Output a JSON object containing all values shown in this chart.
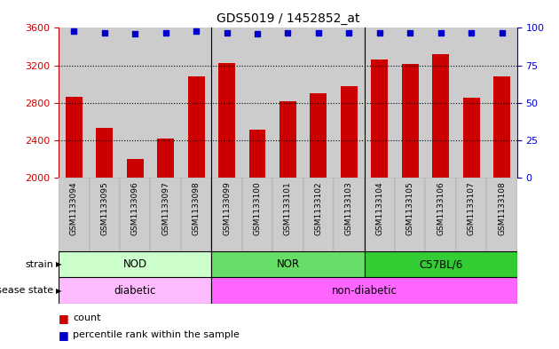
{
  "title": "GDS5019 / 1452852_at",
  "samples": [
    "GSM1133094",
    "GSM1133095",
    "GSM1133096",
    "GSM1133097",
    "GSM1133098",
    "GSM1133099",
    "GSM1133100",
    "GSM1133101",
    "GSM1133102",
    "GSM1133103",
    "GSM1133104",
    "GSM1133105",
    "GSM1133106",
    "GSM1133107",
    "GSM1133108"
  ],
  "counts": [
    2870,
    2530,
    2200,
    2420,
    3080,
    3230,
    2520,
    2820,
    2900,
    2980,
    3260,
    3220,
    3320,
    2860,
    3080
  ],
  "percentiles": [
    98,
    97,
    96,
    97,
    98,
    97,
    96,
    97,
    97,
    97,
    97,
    97,
    97,
    97,
    97
  ],
  "ylim_left": [
    2000,
    3600
  ],
  "ylim_right": [
    0,
    100
  ],
  "yticks_left": [
    2000,
    2400,
    2800,
    3200,
    3600
  ],
  "yticks_right": [
    0,
    25,
    50,
    75,
    100
  ],
  "bar_color": "#cc0000",
  "dot_color": "#0000cc",
  "grid_color": "#000000",
  "col_bg_color": "#cccccc",
  "strain_groups": [
    {
      "label": "NOD",
      "start": 0,
      "end": 5,
      "color": "#ccffcc"
    },
    {
      "label": "NOR",
      "start": 5,
      "end": 10,
      "color": "#66dd66"
    },
    {
      "label": "C57BL/6",
      "start": 10,
      "end": 15,
      "color": "#33cc33"
    }
  ],
  "disease_groups": [
    {
      "label": "diabetic",
      "start": 0,
      "end": 5,
      "color": "#ffbbff"
    },
    {
      "label": "non-diabetic",
      "start": 5,
      "end": 15,
      "color": "#ff66ff"
    }
  ],
  "strain_row_label": "strain",
  "disease_row_label": "disease state",
  "legend_count_label": "count",
  "legend_pct_label": "percentile rank within the sample",
  "bg_color": "#ffffff",
  "title_fontsize": 10,
  "axis_label_color_left": "#cc0000",
  "axis_label_color_right": "#0000cc",
  "bar_width": 0.55
}
